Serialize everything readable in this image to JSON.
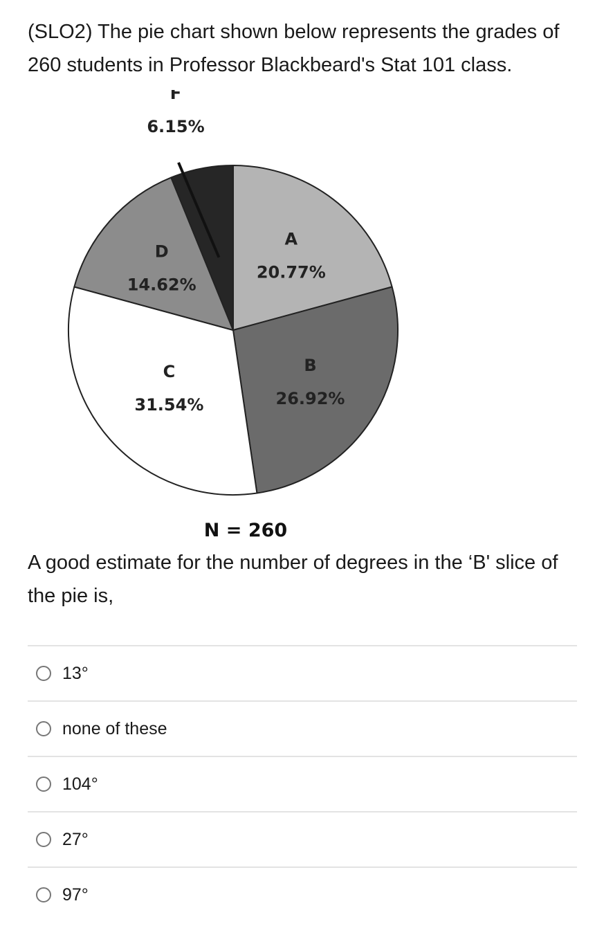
{
  "question": {
    "prompt": "(SLO2) The pie chart shown below represents the grades of 260 students in Professor Blackbeard's Stat 101 class.",
    "followup": "A good estimate for the number of degrees in the ‘B' slice of the pie is,"
  },
  "chart_data": {
    "type": "pie",
    "note": "N = 260",
    "slices": [
      {
        "label": "A",
        "value": 20.77,
        "value_text": "20.77%",
        "color": "#b4b4b4"
      },
      {
        "label": "B",
        "value": 26.92,
        "value_text": "26.92%",
        "color": "#6b6b6b"
      },
      {
        "label": "C",
        "value": 31.54,
        "value_text": "31.54%",
        "color": "#ffffff"
      },
      {
        "label": "D",
        "value": 14.62,
        "value_text": "14.62%",
        "color": "#8c8c8c"
      },
      {
        "label": "F",
        "value": 6.15,
        "value_text": "6.15%",
        "color": "#262626"
      }
    ]
  },
  "choices": [
    {
      "label": "13°"
    },
    {
      "label": "none of these"
    },
    {
      "label": "104°"
    },
    {
      "label": "27°"
    },
    {
      "label": "97°"
    }
  ]
}
